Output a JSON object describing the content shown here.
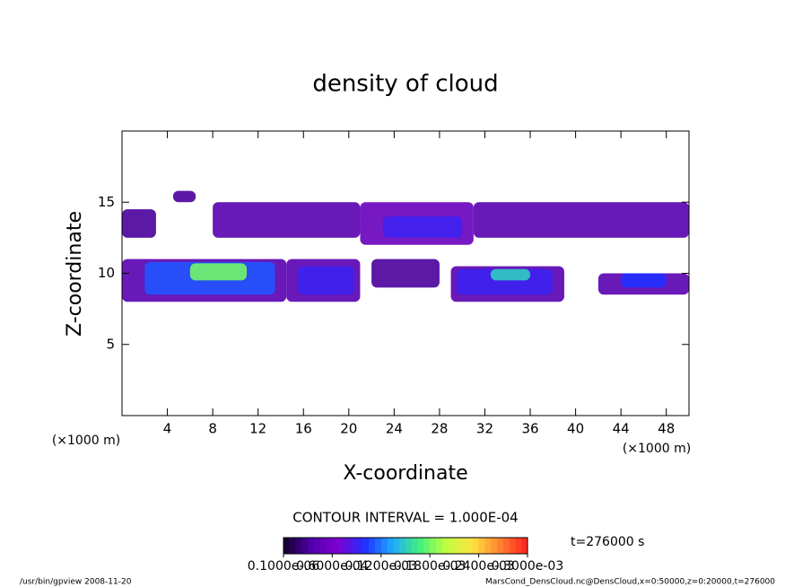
{
  "chart_data": {
    "type": "contour",
    "title": "density of cloud",
    "xlabel": "X-coordinate",
    "ylabel": "Z-coordinate",
    "xunit": "(×1000 m)",
    "yunit": "(×1000 m)",
    "xlim": [
      0,
      50
    ],
    "xticks": [
      4,
      8,
      12,
      16,
      20,
      24,
      28,
      32,
      36,
      40,
      44,
      48
    ],
    "ylim": [
      0,
      20
    ],
    "yticks": [
      5,
      10,
      15
    ],
    "patches": [
      {
        "x": [
          0,
          3
        ],
        "z": [
          12.5,
          14.5
        ],
        "value": 3e-05
      },
      {
        "x": [
          4.5,
          6.5
        ],
        "z": [
          15,
          15.8
        ],
        "value": 3e-05
      },
      {
        "x": [
          8,
          21
        ],
        "z": [
          12.5,
          15
        ],
        "value": 4e-05
      },
      {
        "x": [
          21,
          31
        ],
        "z": [
          12,
          15
        ],
        "value": 5e-05
      },
      {
        "x": [
          23,
          30
        ],
        "z": [
          12.5,
          14
        ],
        "value": 9e-05
      },
      {
        "x": [
          31,
          50
        ],
        "z": [
          12.5,
          15
        ],
        "value": 4e-05
      },
      {
        "x": [
          0,
          14.5
        ],
        "z": [
          8,
          11
        ],
        "value": 4e-05
      },
      {
        "x": [
          2,
          13.5
        ],
        "z": [
          8.5,
          10.8
        ],
        "value": 0.00011
      },
      {
        "x": [
          6,
          11
        ],
        "z": [
          9.5,
          10.7
        ],
        "value": 0.00018
      },
      {
        "x": [
          14.5,
          21
        ],
        "z": [
          8,
          11
        ],
        "value": 4e-05
      },
      {
        "x": [
          15.5,
          20.5
        ],
        "z": [
          8.5,
          10.5
        ],
        "value": 9e-05
      },
      {
        "x": [
          22,
          28
        ],
        "z": [
          9,
          11
        ],
        "value": 3e-05
      },
      {
        "x": [
          29,
          39
        ],
        "z": [
          8,
          10.5
        ],
        "value": 4e-05
      },
      {
        "x": [
          29.5,
          38
        ],
        "z": [
          8.5,
          10.3
        ],
        "value": 9e-05
      },
      {
        "x": [
          32.5,
          36
        ],
        "z": [
          9.5,
          10.3
        ],
        "value": 0.00015
      },
      {
        "x": [
          42,
          50
        ],
        "z": [
          8.5,
          10
        ],
        "value": 4e-05
      },
      {
        "x": [
          44,
          48
        ],
        "z": [
          9,
          10
        ],
        "value": 0.0001
      }
    ],
    "contour_interval": "CONTOUR INTERVAL = 1.000E-04",
    "time": "t=276000 s",
    "clim": [
      1e-07,
      0.0003
    ],
    "cticks": [
      {
        "value": 1e-07,
        "label": "0.1000e-06"
      },
      {
        "value": 6e-05,
        "label": "0.6000e-04"
      },
      {
        "value": 0.00012,
        "label": "0.1200e-03"
      },
      {
        "value": 0.00018,
        "label": "0.1800e-03"
      },
      {
        "value": 0.00024,
        "label": "0.2400e-03"
      },
      {
        "value": 0.0003,
        "label": "0.3000e-03"
      }
    ],
    "colormap": [
      "#10002a",
      "#5000a8",
      "#8000d0",
      "#2030ff",
      "#20a8ff",
      "#40f080",
      "#c0ff40",
      "#ffe040",
      "#ff8030",
      "#ff2020"
    ],
    "footer_left": "/usr/bin/gpview  2008-11-20",
    "footer_right": "MarsCond_DensCloud.nc@DensCloud,x=0:50000,z=0:20000,t=276000"
  }
}
